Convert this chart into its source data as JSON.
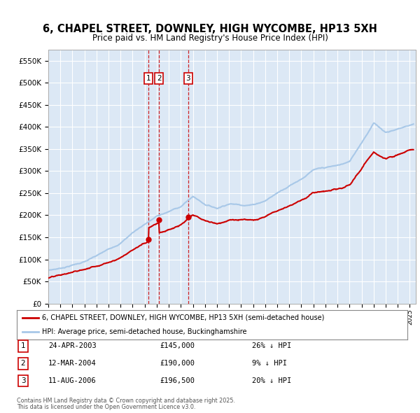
{
  "title": "6, CHAPEL STREET, DOWNLEY, HIGH WYCOMBE, HP13 5XH",
  "subtitle": "Price paid vs. HM Land Registry's House Price Index (HPI)",
  "legend_line1": "6, CHAPEL STREET, DOWNLEY, HIGH WYCOMBE, HP13 5XH (semi-detached house)",
  "legend_line2": "HPI: Average price, semi-detached house, Buckinghamshire",
  "footer1": "Contains HM Land Registry data © Crown copyright and database right 2025.",
  "footer2": "This data is licensed under the Open Government Licence v3.0.",
  "transactions": [
    {
      "num": 1,
      "date": "24-APR-2003",
      "price": "£145,000",
      "hpi": "26% ↓ HPI",
      "year": 2003.31
    },
    {
      "num": 2,
      "date": "12-MAR-2004",
      "price": "£190,000",
      "hpi": "9% ↓ HPI",
      "year": 2004.19
    },
    {
      "num": 3,
      "date": "11-AUG-2006",
      "price": "£196,500",
      "hpi": "20% ↓ HPI",
      "year": 2006.61
    }
  ],
  "transaction_values": [
    145000,
    190000,
    196500
  ],
  "hpi_color": "#a8c8e8",
  "price_color": "#cc0000",
  "vline_color": "#cc0000",
  "background_color": "#dce8f5",
  "ylim": [
    0,
    575000
  ],
  "xlim_start": 1995.0,
  "xlim_end": 2025.5,
  "years_hpi": [
    1995,
    1996,
    1997,
    1998,
    1999,
    2000,
    2001,
    2002,
    2003,
    2004,
    2005,
    2006,
    2007,
    2008,
    2009,
    2010,
    2011,
    2012,
    2013,
    2014,
    2015,
    2016,
    2017,
    2018,
    2019,
    2020,
    2021,
    2022,
    2023,
    2024,
    2025.3
  ],
  "hpi_vals": [
    75000,
    80000,
    88000,
    96000,
    108000,
    122000,
    138000,
    162000,
    182000,
    200000,
    210000,
    222000,
    245000,
    228000,
    220000,
    232000,
    230000,
    232000,
    242000,
    260000,
    278000,
    295000,
    315000,
    318000,
    322000,
    330000,
    375000,
    420000,
    400000,
    408000,
    420000
  ]
}
